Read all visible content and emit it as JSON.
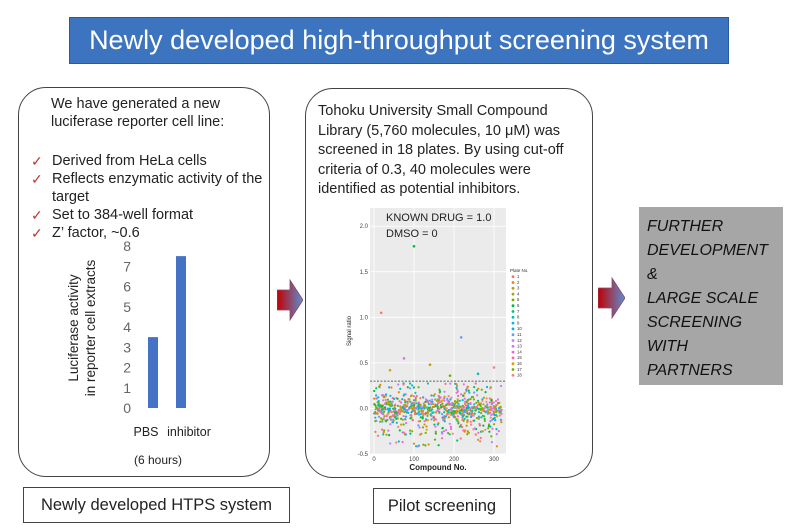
{
  "title": "Newly developed high-throughput screening system",
  "left_panel": {
    "intro": "We have generated a new luciferase reporter cell line:",
    "checks": [
      {
        "icon": "check-mark-icon",
        "text": "Derived from HeLa cells"
      },
      {
        "icon": "check-mark-icon",
        "text": "Reflects enzymatic activity of the target"
      },
      {
        "icon": "check-mark-icon",
        "text": "Set to 384-well format"
      },
      {
        "icon": "check-mark-icon",
        "text": "Z’ factor, ~0.6"
      }
    ],
    "footnote": "(6 hours)",
    "label": "Newly developed HTPS system"
  },
  "middle_panel": {
    "text": "Tohoku University Small Compound Library (5,760 molecules, 10 μM) was screened in 18 plates. By using cut-off criteria of 0.3, 40 molecules were identified as potential inhibitors.",
    "label": "Pilot screening"
  },
  "right_box": {
    "lines": [
      "FURTHER",
      "DEVELOPMENT",
      "&",
      "LARGE SCALE",
      "SCREENING",
      "WITH",
      "PARTNERS"
    ]
  },
  "colors": {
    "title_bg": "#3c74c0",
    "bar": "#4472c4",
    "check": "#c0392b",
    "arrow_start": "#c00000",
    "arrow_end": "#5b8fd6",
    "gray_box": "#a6a6a6"
  },
  "chart_data": [
    {
      "type": "bar",
      "categories": [
        "PBS",
        "inhibitor"
      ],
      "values": [
        3.5,
        7.5
      ],
      "ylabel": "Luciferase activity\nin reporter cell extracts",
      "ylim": [
        0,
        8
      ],
      "yticks": [
        0,
        1,
        2,
        3,
        4,
        5,
        6,
        7,
        8
      ],
      "grid": false
    },
    {
      "type": "scatter",
      "xlabel": "Compound No.",
      "ylabel": "Signal ratio",
      "xlim": [
        -10,
        330
      ],
      "ylim": [
        -0.5,
        2.2
      ],
      "xticks": [
        0,
        100,
        200,
        300
      ],
      "yticks": [
        -0.5,
        0.0,
        0.5,
        1.0,
        1.5,
        2.0
      ],
      "ytick_labels": [
        "-0.5",
        "0.0",
        "0.5",
        "1.0",
        "1.5",
        "2.0"
      ],
      "annotations": [
        "KNOWN DRUG = 1.0",
        "DMSO = 0"
      ],
      "cutoff": 0.3,
      "legend_title": "Plate No.",
      "legend_position": "right",
      "series_names": [
        "1",
        "2",
        "3",
        "4",
        "5",
        "6",
        "7",
        "8",
        "9",
        "10",
        "11",
        "12",
        "13",
        "14",
        "15",
        "16",
        "17",
        "18"
      ],
      "series_colors": [
        "#f8766d",
        "#e58700",
        "#c99800",
        "#a3a500",
        "#6bb100",
        "#00ba38",
        "#00bf7d",
        "#00c0af",
        "#00bcd8",
        "#00b0f6",
        "#619cff",
        "#b983ff",
        "#e76bf3",
        "#fd61d1",
        "#ff67a4",
        "#d8a000",
        "#7cae00",
        "#ff8080"
      ],
      "outliers": [
        [
          18,
          1.05
        ],
        [
          100,
          1.78
        ],
        [
          218,
          0.78
        ],
        [
          40,
          0.42
        ],
        [
          140,
          0.48
        ],
        [
          260,
          0.38
        ],
        [
          75,
          0.55
        ],
        [
          300,
          0.45
        ],
        [
          190,
          0.36
        ]
      ]
    }
  ]
}
